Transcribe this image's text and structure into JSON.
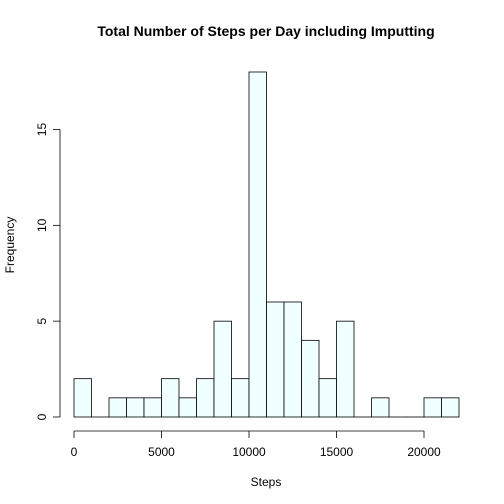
{
  "chart_data": {
    "type": "bar",
    "title": "Total Number of Steps per Day including Imputting",
    "xlabel": "Steps",
    "ylabel": "Frequency",
    "bin_width": 1000,
    "bin_start": 0,
    "bin_end": 22000,
    "values": [
      2,
      0,
      1,
      1,
      1,
      2,
      1,
      2,
      5,
      2,
      18,
      6,
      6,
      4,
      2,
      5,
      0,
      1,
      0,
      0,
      1,
      1
    ],
    "xlim": [
      0,
      22000
    ],
    "ylim": [
      0,
      18
    ],
    "x_ticks": [
      0,
      5000,
      10000,
      15000,
      20000
    ],
    "y_ticks": [
      0,
      5,
      10,
      15
    ],
    "bar_color": "#F0FFFF",
    "grid": false,
    "legend": "none"
  }
}
